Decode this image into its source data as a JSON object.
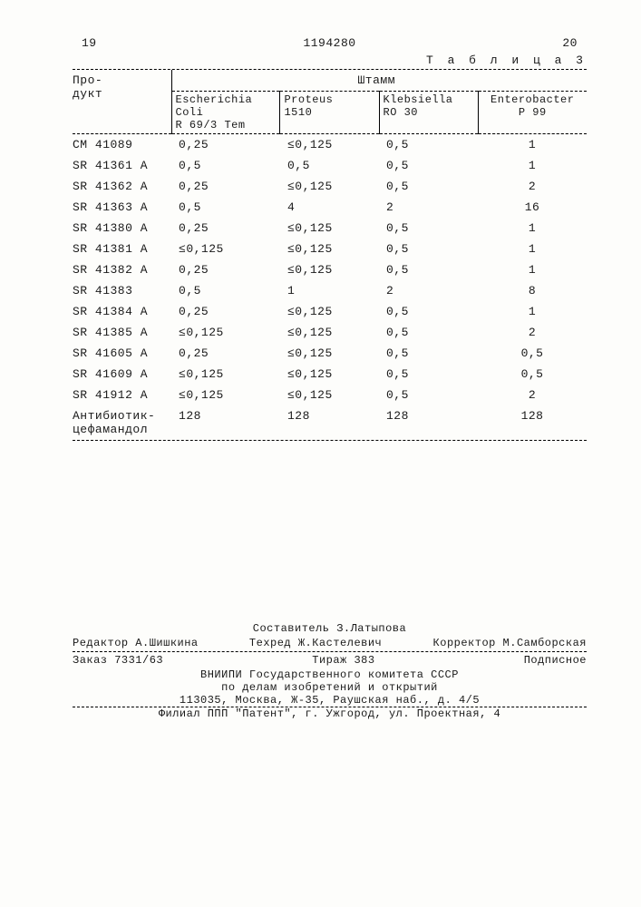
{
  "header": {
    "left_num": "19",
    "doc_num": "1194280",
    "right_num": "20"
  },
  "table_caption": "Т а б л и ц а  3",
  "table": {
    "product_label": "Про-\nдукт",
    "strain_label": "Штамм",
    "columns": [
      "Escherichia\nColi\nR 69/3 Tem",
      "Proteus\n1510",
      "Klebsiella\nRO 30",
      "Enterobacter\nP 99"
    ],
    "rows": [
      {
        "label": "CM 41089",
        "vals": [
          "0,25",
          "≤0,125",
          "0,5",
          "1"
        ]
      },
      {
        "label": "SR 41361 A",
        "vals": [
          "0,5",
          "0,5",
          "0,5",
          "1"
        ]
      },
      {
        "label": "SR 41362 A",
        "vals": [
          "0,25",
          "≤0,125",
          "0,5",
          "2"
        ]
      },
      {
        "label": "SR 41363 A",
        "vals": [
          "0,5",
          "4",
          "2",
          "16"
        ]
      },
      {
        "label": "SR 41380 A",
        "vals": [
          "0,25",
          "≤0,125",
          "0,5",
          "1"
        ]
      },
      {
        "label": "SR 41381 A",
        "vals": [
          "≤0,125",
          "≤0,125",
          "0,5",
          "1"
        ]
      },
      {
        "label": "SR 41382 A",
        "vals": [
          "0,25",
          "≤0,125",
          "0,5",
          "1"
        ]
      },
      {
        "label": "SR 41383",
        "vals": [
          "0,5",
          "1",
          "2",
          "8"
        ]
      },
      {
        "label": "SR 41384 A",
        "vals": [
          "0,25",
          "≤0,125",
          "0,5",
          "1"
        ]
      },
      {
        "label": "SR 41385 A",
        "vals": [
          "≤0,125",
          "≤0,125",
          "0,5",
          "2"
        ]
      },
      {
        "label": "SR 41605 A",
        "vals": [
          "0,25",
          "≤0,125",
          "0,5",
          "0,5"
        ]
      },
      {
        "label": "SR 41609 A",
        "vals": [
          "≤0,125",
          "≤0,125",
          "0,5",
          "0,5"
        ]
      },
      {
        "label": "SR 41912 A",
        "vals": [
          "≤0,125",
          "≤0,125",
          "0,5",
          "2"
        ]
      },
      {
        "label": "Антибиотик-\nцефамандол",
        "vals": [
          "128",
          "128",
          "128",
          "128"
        ]
      }
    ]
  },
  "credits": {
    "compiler": "Составитель З.Латыпова",
    "editor": "Редактор А.Шишкина",
    "techred": "Техред Ж.Кастелевич",
    "corrector": "Корректор М.Самборская",
    "order": "Заказ 7331/63",
    "tirage": "Тираж 383",
    "subscribed": "Подписное",
    "org1": "ВНИИПИ Государственного комитета СССР",
    "org2": "по делам изобретений и открытий",
    "addr1": "113035, Москва, Ж-35, Раушская наб., д. 4/5",
    "branch": "Филиал ППП \"Патент\", г. Ужгород, ул. Проектная, 4"
  }
}
